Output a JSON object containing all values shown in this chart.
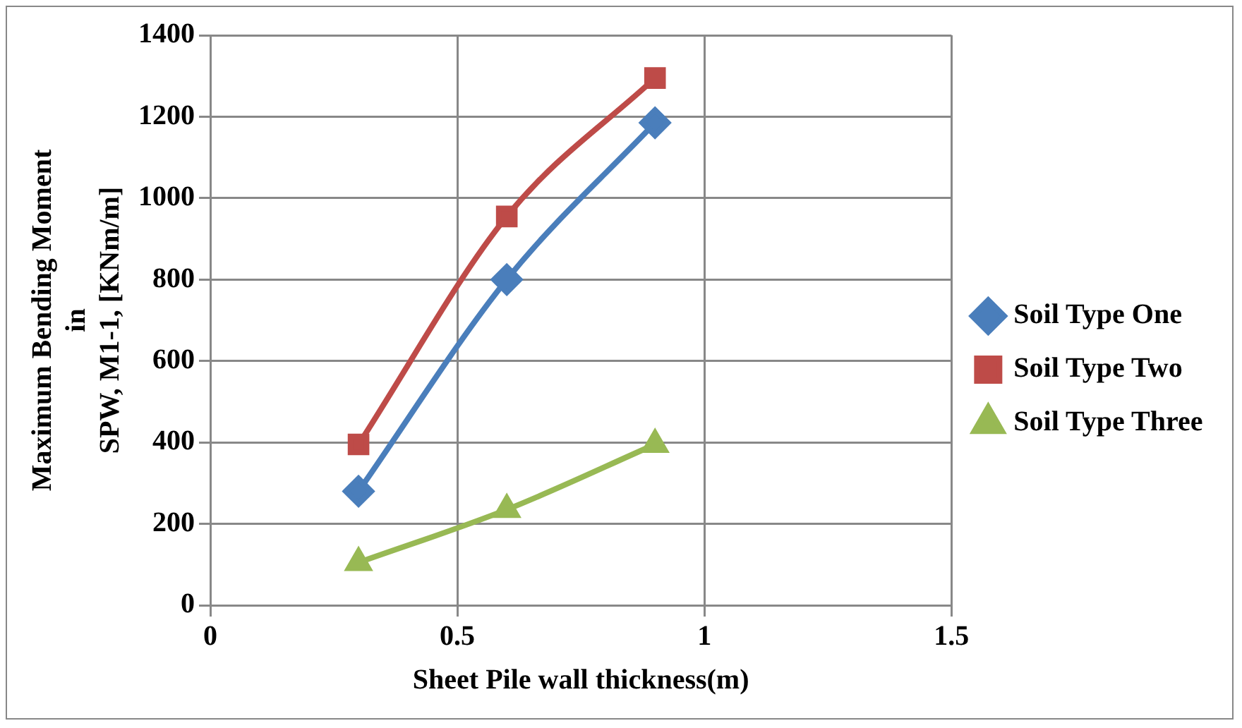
{
  "chart_data": {
    "type": "line",
    "xlabel": "Sheet Pile wall thickness(m)",
    "ylabel": "Maximum Bending Moment\nin\nSPW, M1-1, [KNm/m]",
    "xlim": [
      0,
      1.5
    ],
    "xticks": [
      0,
      0.5,
      1,
      1.5
    ],
    "ylim": [
      0,
      1400
    ],
    "yticks": [
      0,
      200,
      400,
      600,
      800,
      1000,
      1200,
      1400
    ],
    "grid": true,
    "legend": "right",
    "line_style": "solid",
    "series": [
      {
        "name": "Soil Type One",
        "color": "#4a7ebb",
        "marker": "diamond",
        "x": [
          0.3,
          0.6,
          0.9
        ],
        "values": [
          280,
          800,
          1185
        ]
      },
      {
        "name": "Soil Type Two",
        "color": "#be4b48",
        "marker": "square",
        "x": [
          0.3,
          0.6,
          0.9
        ],
        "values": [
          395,
          955,
          1295
        ]
      },
      {
        "name": "Soil Type Three",
        "color": "#98b954",
        "marker": "triangle",
        "x": [
          0.3,
          0.6,
          0.9
        ],
        "values": [
          105,
          235,
          395
        ]
      }
    ]
  }
}
